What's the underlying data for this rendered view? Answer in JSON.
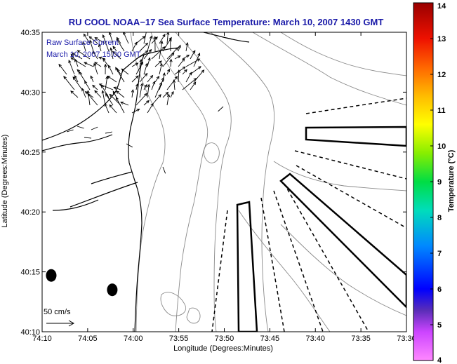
{
  "chart_data": {
    "type": "map",
    "title": "RU COOL  NOAA−17  Sea Surface Temperature:  March 10, 2007 1430 GMT",
    "xlabel": "Longitude (Degrees:Minutes)",
    "ylabel": "Latitude (Degrees:Minutes)",
    "xticks": [
      "74:10",
      "74:05",
      "74:00",
      "73:55",
      "73:50",
      "73:45",
      "73:40",
      "73:35",
      "73:30"
    ],
    "yticks": [
      "40:10",
      "40:15",
      "40:20",
      "40:25",
      "40:30",
      "40:35"
    ],
    "xlim_minutes_west": [
      70,
      30
    ],
    "ylim_minutes_north": [
      10,
      35
    ],
    "legend": {
      "line1": "Raw Surface Current",
      "line2": "March 10, 2007 15:00 GMT"
    },
    "scale_label": "50 cm/s",
    "colorbar": {
      "label": "Temperature (°C)",
      "min": 4,
      "max": 14,
      "ticks": [
        "4",
        "5",
        "6",
        "7",
        "8",
        "9",
        "10",
        "11",
        "12",
        "13",
        "14"
      ]
    },
    "stations": [
      {
        "lon_w_min": 69.0,
        "lat_n_min": 14.7
      },
      {
        "lon_w_min": 62.3,
        "lat_n_min": 13.5
      }
    ]
  },
  "colors": {
    "title": "#1a1aa8",
    "legend_text": "#1a1aa8",
    "coastline": "#000000",
    "contours": "#8a8a8a",
    "arrows": "#000000",
    "shipping_lanes": "#000000"
  }
}
